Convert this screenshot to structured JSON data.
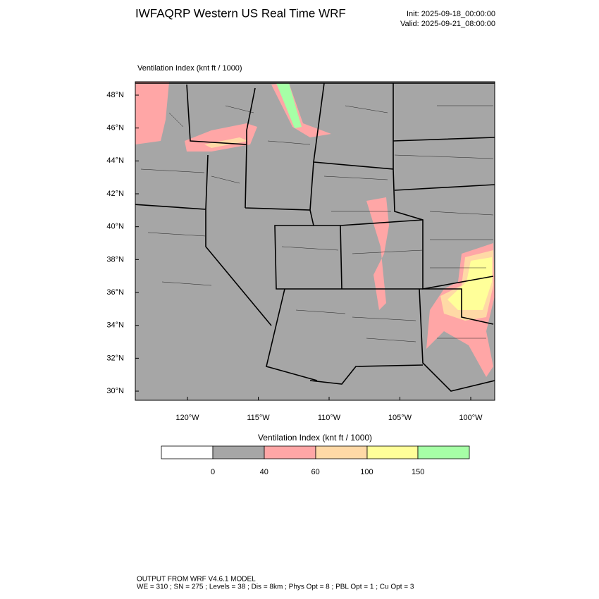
{
  "header": {
    "title": "IWFAQRP Western US Real Time WRF",
    "init": "Init: 2025-09-18_00:00:00",
    "valid": "Valid: 2025-09-21_08:00:00"
  },
  "map": {
    "subtitle": "Ventilation Index   (knt ft / 1000)",
    "lat_labels": [
      "48°N",
      "46°N",
      "44°N",
      "42°N",
      "40°N",
      "38°N",
      "36°N",
      "34°N",
      "32°N",
      "30°N"
    ],
    "lon_labels": [
      "120°W",
      "115°W",
      "110°W",
      "105°W",
      "100°W"
    ]
  },
  "colorbar": {
    "title": "Ventilation Index   (knt ft / 1000)",
    "labels": [
      "0",
      "40",
      "60",
      "100",
      "150"
    ]
  },
  "footer": {
    "lines": [
      "OUTPUT FROM WRF V4.6.1 MODEL",
      "WE = 310 ; SN = 275 ; Levels = 38 ; Dis = 8km ; Phys Opt = 8 ; PBL Opt = 1 ; Cu Opt = 3"
    ]
  }
}
